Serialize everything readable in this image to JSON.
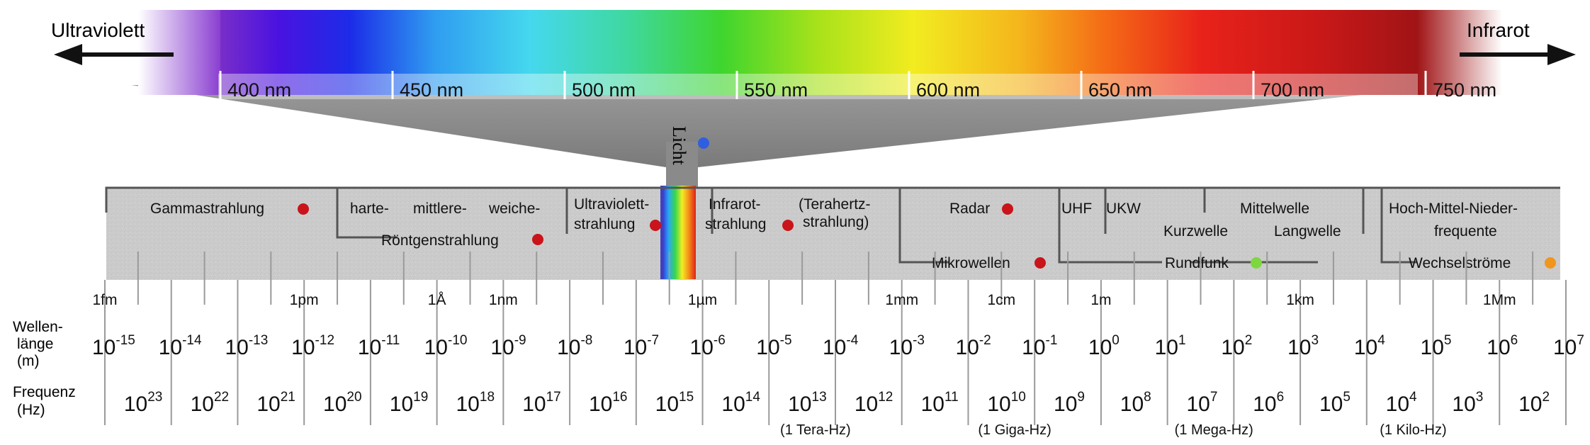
{
  "arrows": {
    "left_label": "Ultraviolett",
    "right_label": "Infrarot"
  },
  "spectrum_ticks": [
    "400 nm",
    "450 nm",
    "500 nm",
    "550 nm",
    "600 nm",
    "650 nm",
    "700 nm",
    "750 nm"
  ],
  "light_label": "Licht",
  "bands": {
    "gamma": "Gammastrahlung",
    "xray_hard": "harte-",
    "xray_mid": "mittlere-",
    "xray_soft": "weiche-",
    "xray": "Röntgenstrahlung",
    "uv_1": "Ultraviolett-",
    "uv_2": "strahlung",
    "ir_1": "Infrarot-",
    "ir_2": "strahlung",
    "thz_1": "(Terahertz-",
    "thz_2": "strahlung)",
    "radar": "Radar",
    "microwave": "Mikrowellen",
    "uhf": "UHF",
    "ukw": "UKW",
    "kurzwelle": "Kurzwelle",
    "mittelwelle": "Mittelwelle",
    "langwelle": "Langwelle",
    "rundfunk": "Rundfunk",
    "lf_1": "Hoch-Mittel-Nieder-",
    "lf_2": "frequente",
    "wechsel": "Wechselströme"
  },
  "units_row": [
    "1fm",
    "1pm",
    "1Å",
    "1nm",
    "1µm",
    "1mm",
    "1cm",
    "1m",
    "1km",
    "1Mm"
  ],
  "wavelength": {
    "label_1": "Wellen-",
    "label_2": "länge",
    "label_3": "(m)",
    "base": "10",
    "exponents": [
      "-15",
      "-14",
      "-13",
      "-12",
      "-11",
      "-10",
      "-9",
      "-8",
      "-7",
      "-6",
      "-5",
      "-4",
      "-3",
      "-2",
      "-1",
      "0",
      "1",
      "2",
      "3",
      "4",
      "5",
      "6",
      "7"
    ]
  },
  "frequency": {
    "label_1": "Frequenz",
    "label_2": "(Hz)",
    "base": "10",
    "exponents": [
      "23",
      "22",
      "21",
      "20",
      "19",
      "18",
      "17",
      "16",
      "15",
      "14",
      "13",
      "12",
      "11",
      "10",
      "9",
      "8",
      "7",
      "6",
      "5",
      "4",
      "3",
      "2"
    ],
    "notes": [
      "(1 Tera-Hz)",
      "(1 Giga-Hz)",
      "(1 Mega-Hz)",
      "(1 Kilo-Hz)"
    ]
  },
  "colors": {
    "marker_red": "#c8141a",
    "marker_blue": "#2f5fe0",
    "marker_green": "#7ed640",
    "marker_orange": "#f0951e",
    "band_fill": "#c8c8c8",
    "funnel": "#8c8c8c"
  }
}
